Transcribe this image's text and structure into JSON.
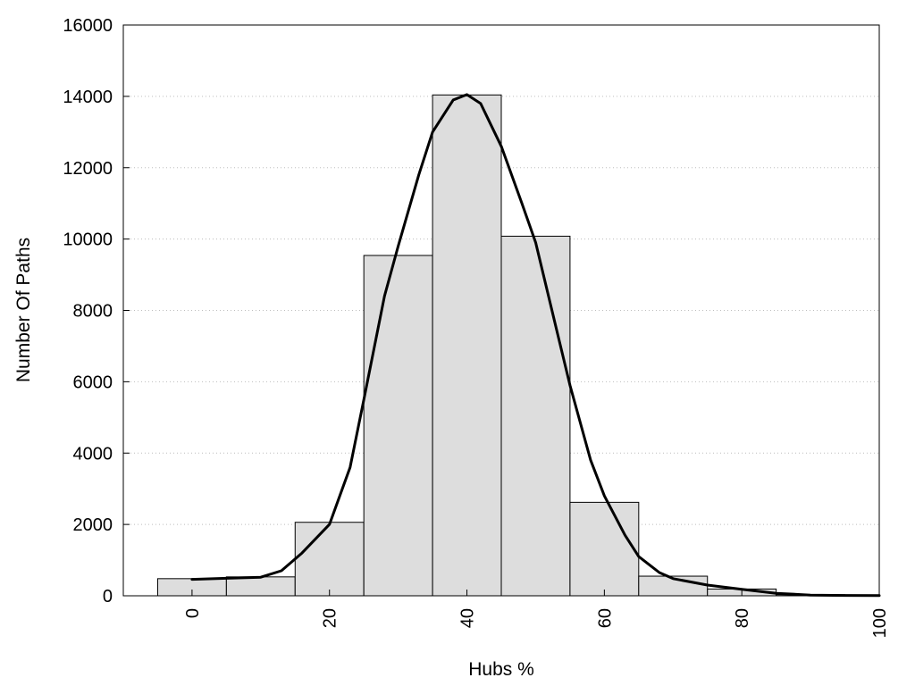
{
  "chart_data": {
    "type": "bar",
    "title": "",
    "xlabel": "Hubs %",
    "ylabel": "Number Of Paths",
    "xlim": [
      -10,
      100
    ],
    "ylim": [
      0,
      16000
    ],
    "x_ticks": [
      0,
      20,
      40,
      60,
      80,
      100
    ],
    "y_ticks": [
      0,
      2000,
      4000,
      6000,
      8000,
      10000,
      12000,
      14000,
      16000
    ],
    "grid": "horizontal dotted",
    "bin_width": 10,
    "bins": [
      {
        "center": 0,
        "value": 480
      },
      {
        "center": 10,
        "value": 530
      },
      {
        "center": 20,
        "value": 2060
      },
      {
        "center": 30,
        "value": 9540
      },
      {
        "center": 40,
        "value": 14040
      },
      {
        "center": 50,
        "value": 10080
      },
      {
        "center": 60,
        "value": 2620
      },
      {
        "center": 70,
        "value": 550
      },
      {
        "center": 80,
        "value": 190
      },
      {
        "center": 90,
        "value": 30
      },
      {
        "center": 100,
        "value": 10
      }
    ],
    "curve": {
      "type": "line",
      "x": [
        0,
        5,
        10,
        13,
        16,
        20,
        23,
        25,
        28,
        30,
        33,
        35,
        38,
        40,
        42,
        45,
        48,
        50,
        53,
        55,
        58,
        60,
        63,
        65,
        68,
        70,
        75,
        80,
        85,
        90,
        95,
        100
      ],
      "y": [
        460,
        490,
        520,
        700,
        1200,
        2000,
        3600,
        5500,
        8400,
        9800,
        11800,
        13000,
        13900,
        14050,
        13800,
        12600,
        11000,
        9900,
        7500,
        5900,
        3800,
        2800,
        1700,
        1100,
        650,
        480,
        300,
        180,
        70,
        20,
        10,
        5
      ]
    },
    "colors": {
      "bar_fill": "#dddddd",
      "bar_stroke": "#000000",
      "curve": "#000000",
      "grid": "#bdbdbd"
    }
  }
}
